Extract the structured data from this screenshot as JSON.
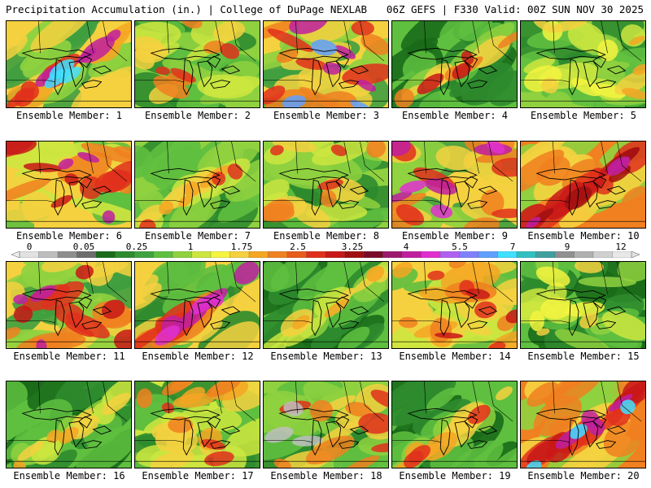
{
  "header": {
    "title": "Precipitation Accumulation (in.) | College of DuPage NEXLAB",
    "run_info": "06Z GEFS | F330 Valid: 00Z SUN NOV 30 2025"
  },
  "colorbar": {
    "tick_labels": [
      "0",
      "0.05",
      "0.25",
      "1",
      "1.75",
      "2.5",
      "3.25",
      "4",
      "5.5",
      "7",
      "9",
      "12"
    ],
    "colors": [
      "#e2e2e2",
      "#bdbdbd",
      "#8e8e8e",
      "#6d6d6d",
      "#1a6b1a",
      "#2e8b2e",
      "#3fa33f",
      "#5fbf3f",
      "#8fd13f",
      "#cde63f",
      "#f5f53f",
      "#f5d13f",
      "#f5a623",
      "#f08020",
      "#e85c1c",
      "#e0301c",
      "#c81818",
      "#a01010",
      "#7a0c2a",
      "#9c1a6e",
      "#c020a0",
      "#e030d0",
      "#b060f0",
      "#8080ff",
      "#60a0ff",
      "#40e0ff",
      "#30c0c0",
      "#40a0a0",
      "#909090",
      "#b0b0b0",
      "#d0d0d0",
      "#e8e8e8"
    ]
  },
  "members": [
    {
      "label": "Ensemble Member: 1",
      "palette": [
        "#3f9f3f",
        "#8fd13f",
        "#f5d13f",
        "#f5a623",
        "#e0301c",
        "#c020a0",
        "#40e0ff"
      ]
    },
    {
      "label": "Ensemble Member: 2",
      "palette": [
        "#2e8b2e",
        "#5fbf3f",
        "#8fd13f",
        "#cde63f",
        "#f5d13f",
        "#f08020",
        "#e0301c"
      ]
    },
    {
      "label": "Ensemble Member: 3",
      "palette": [
        "#3f9f3f",
        "#8fd13f",
        "#f5d13f",
        "#f08020",
        "#e0301c",
        "#c020a0",
        "#60a0ff"
      ]
    },
    {
      "label": "Ensemble Member: 4",
      "palette": [
        "#1a6b1a",
        "#2e8b2e",
        "#5fbf3f",
        "#8fd13f",
        "#f5d13f",
        "#f08020",
        "#c81818"
      ]
    },
    {
      "label": "Ensemble Member: 5",
      "palette": [
        "#2e8b2e",
        "#5fbf3f",
        "#8fd13f",
        "#cde63f",
        "#f5f53f",
        "#f5d13f",
        "#f5a623"
      ]
    },
    {
      "label": "Ensemble Member: 6",
      "palette": [
        "#5fbf3f",
        "#cde63f",
        "#f5d13f",
        "#f08020",
        "#e0301c",
        "#c81818",
        "#c020a0"
      ]
    },
    {
      "label": "Ensemble Member: 7",
      "palette": [
        "#2e8b2e",
        "#5fbf3f",
        "#8fd13f",
        "#cde63f",
        "#f5d13f",
        "#f5a623",
        "#e0301c"
      ]
    },
    {
      "label": "Ensemble Member: 8",
      "palette": [
        "#2e8b2e",
        "#5fbf3f",
        "#8fd13f",
        "#cde63f",
        "#f5d13f",
        "#f08020",
        "#e0301c"
      ]
    },
    {
      "label": "Ensemble Member: 9",
      "palette": [
        "#3f9f3f",
        "#8fd13f",
        "#f5d13f",
        "#f08020",
        "#e0301c",
        "#c020a0",
        "#e030d0"
      ]
    },
    {
      "label": "Ensemble Member: 10",
      "palette": [
        "#8fd13f",
        "#f5d13f",
        "#f08020",
        "#e0301c",
        "#c81818",
        "#a01010",
        "#c020a0"
      ]
    },
    {
      "label": "Ensemble Member: 11",
      "palette": [
        "#3f9f3f",
        "#8fd13f",
        "#f5d13f",
        "#f08020",
        "#e0301c",
        "#c81818",
        "#c020a0"
      ]
    },
    {
      "label": "Ensemble Member: 12",
      "palette": [
        "#2e8b2e",
        "#5fbf3f",
        "#f5d13f",
        "#f08020",
        "#e0301c",
        "#c020a0",
        "#e030d0"
      ]
    },
    {
      "label": "Ensemble Member: 13",
      "palette": [
        "#1a6b1a",
        "#2e8b2e",
        "#5fbf3f",
        "#8fd13f",
        "#cde63f",
        "#f5d13f",
        "#f5a623"
      ]
    },
    {
      "label": "Ensemble Member: 14",
      "palette": [
        "#5fbf3f",
        "#cde63f",
        "#f5d13f",
        "#f5a623",
        "#f08020",
        "#e0301c",
        "#c81818"
      ]
    },
    {
      "label": "Ensemble Member: 15",
      "palette": [
        "#1a6b1a",
        "#2e8b2e",
        "#5fbf3f",
        "#8fd13f",
        "#cde63f",
        "#f5f53f",
        "#f5d13f"
      ]
    },
    {
      "label": "Ensemble Member: 16",
      "palette": [
        "#1a6b1a",
        "#2e8b2e",
        "#5fbf3f",
        "#8fd13f",
        "#cde63f",
        "#f5d13f",
        "#f5a623"
      ]
    },
    {
      "label": "Ensemble Member: 17",
      "palette": [
        "#2e8b2e",
        "#5fbf3f",
        "#cde63f",
        "#f5d13f",
        "#f5a623",
        "#f08020",
        "#e0301c"
      ]
    },
    {
      "label": "Ensemble Member: 18",
      "palette": [
        "#2e8b2e",
        "#5fbf3f",
        "#8fd13f",
        "#f5d13f",
        "#f08020",
        "#e0301c",
        "#c0c0c0"
      ]
    },
    {
      "label": "Ensemble Member: 19",
      "palette": [
        "#1a6b1a",
        "#2e8b2e",
        "#5fbf3f",
        "#8fd13f",
        "#f5d13f",
        "#f5a623",
        "#e0301c"
      ]
    },
    {
      "label": "Ensemble Member: 20",
      "palette": [
        "#8fd13f",
        "#f5d13f",
        "#f08020",
        "#e0301c",
        "#c81818",
        "#c020a0",
        "#40e0ff"
      ]
    }
  ]
}
